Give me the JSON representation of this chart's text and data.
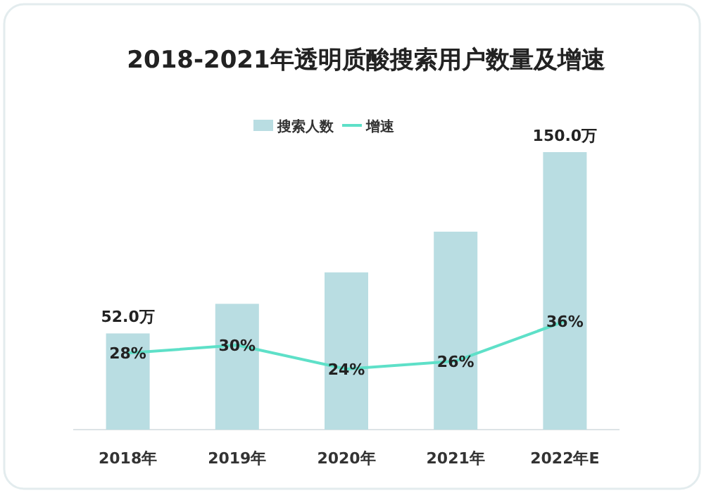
{
  "chart_data": {
    "type": "bar",
    "title": "2018-2021年透明质酸搜索用户数量及增速",
    "categories": [
      "2018年",
      "2019年",
      "2020年",
      "2021年",
      "2022年E"
    ],
    "legend": "top",
    "series": [
      {
        "name": "搜索人数",
        "color": "#b9dde2",
        "values": [
          52,
          68,
          85,
          107,
          150
        ],
        "value_labels": [
          "52.0万",
          null,
          null,
          null,
          "150.0万"
        ]
      },
      {
        "name": "增速",
        "type": "line",
        "axis": "y2",
        "color": "#5ee0c8",
        "values": [
          28,
          30,
          24,
          26,
          36
        ],
        "value_labels": [
          "28%",
          "30%",
          "24%",
          "26%",
          "36%"
        ]
      }
    ]
  }
}
